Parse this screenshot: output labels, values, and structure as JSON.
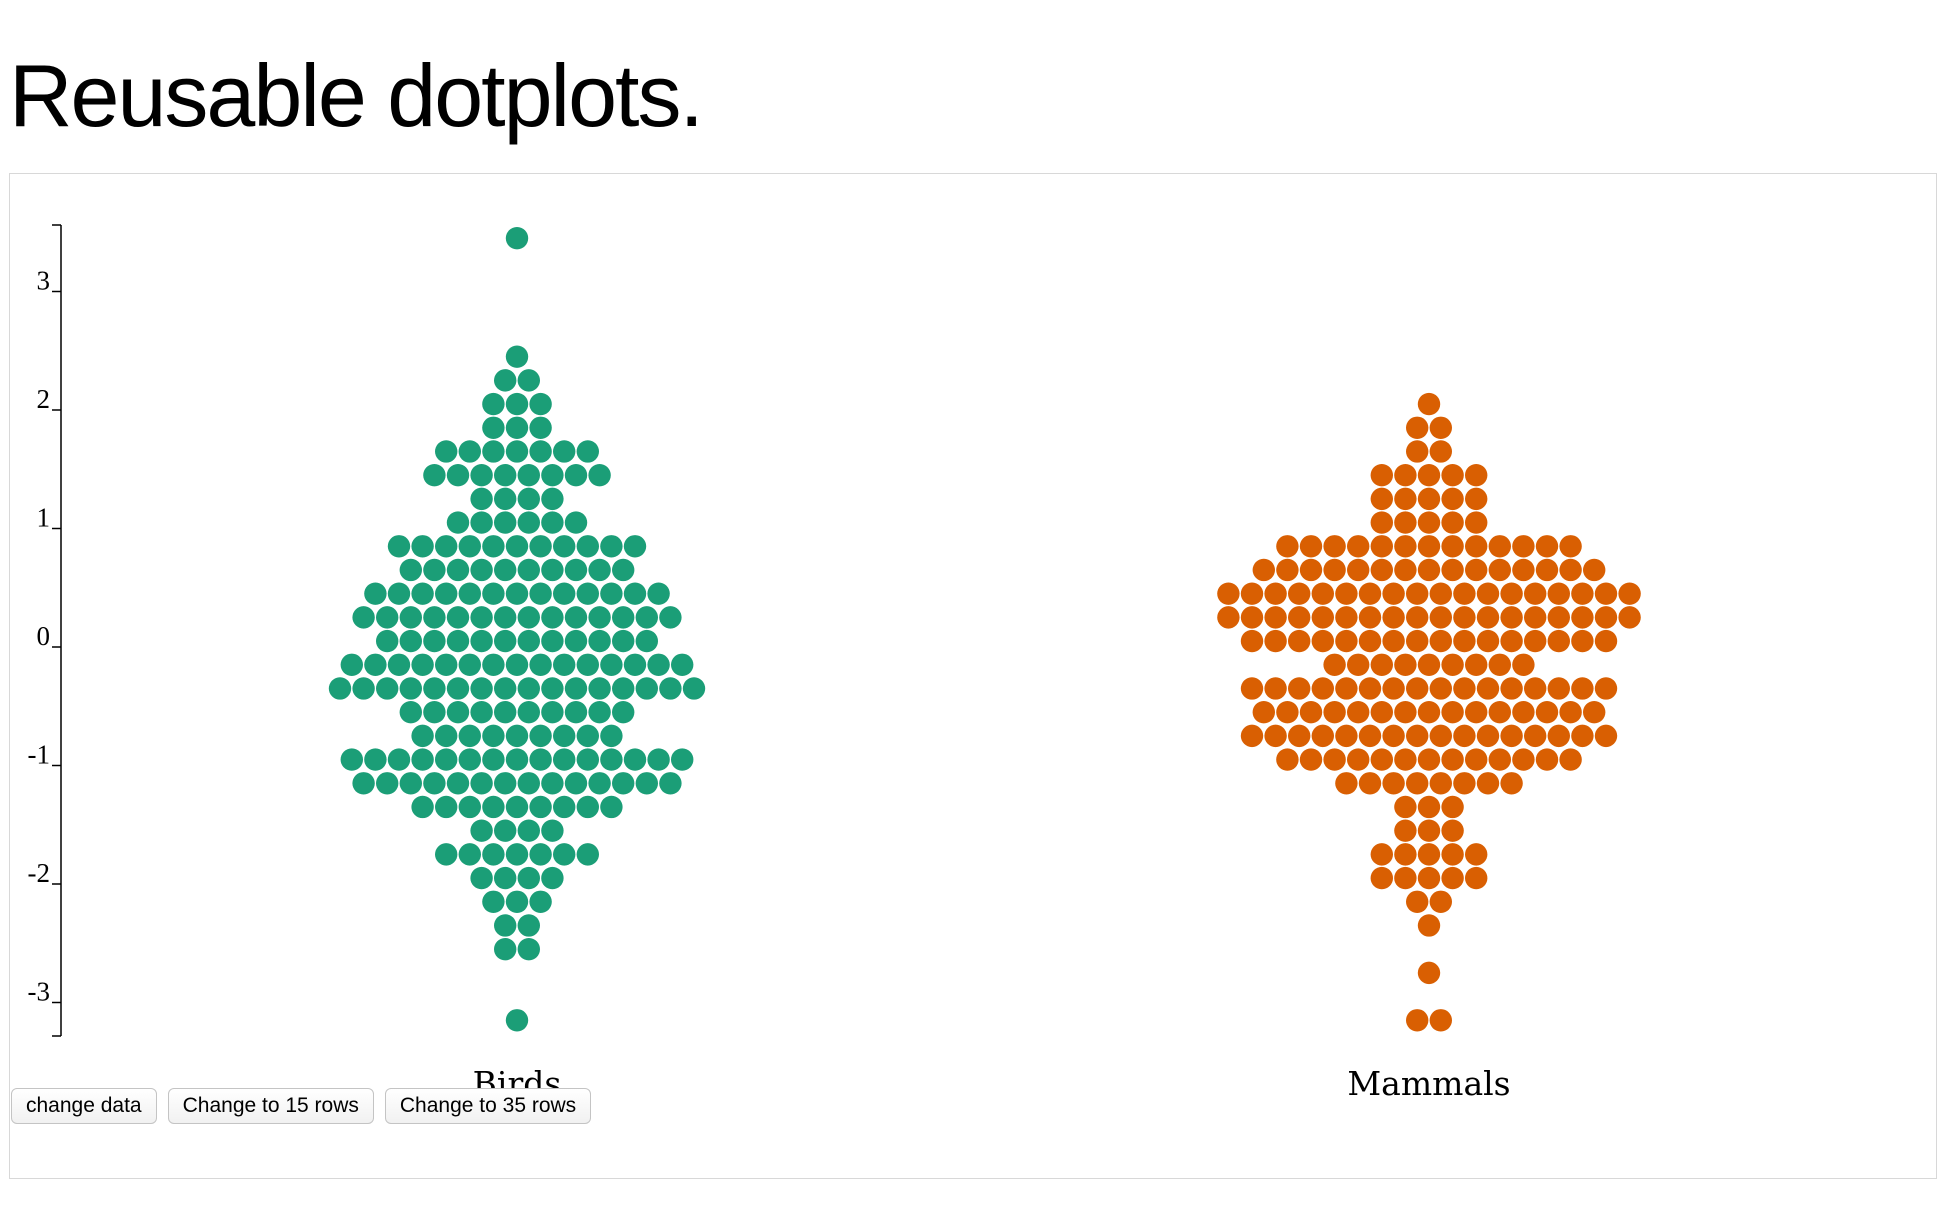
{
  "page": {
    "title": "Reusable dotplots."
  },
  "controls": {
    "change_data": "change data",
    "rows_15": "Change to 15 rows",
    "rows_35": "Change to 35 rows"
  },
  "chart_data": {
    "type": "scatter",
    "subtype": "dotplot",
    "y_ticks": [
      "-3",
      "-2",
      "-1",
      "0",
      "1",
      "2",
      "3"
    ],
    "ylim": [
      -3.4,
      3.6
    ],
    "bin_width": 0.2,
    "grid": false,
    "series": [
      {
        "name": "Birds",
        "color": "#1b9e77",
        "bins": [
          {
            "y": 3.45,
            "count": 1
          },
          {
            "y": 2.45,
            "count": 1
          },
          {
            "y": 2.25,
            "count": 2
          },
          {
            "y": 2.05,
            "count": 3
          },
          {
            "y": 1.85,
            "count": 3
          },
          {
            "y": 1.65,
            "count": 7
          },
          {
            "y": 1.45,
            "count": 8
          },
          {
            "y": 1.25,
            "count": 4
          },
          {
            "y": 1.05,
            "count": 6
          },
          {
            "y": 0.85,
            "count": 11
          },
          {
            "y": 0.65,
            "count": 10
          },
          {
            "y": 0.45,
            "count": 13
          },
          {
            "y": 0.25,
            "count": 14
          },
          {
            "y": 0.05,
            "count": 12
          },
          {
            "y": -0.15,
            "count": 15
          },
          {
            "y": -0.35,
            "count": 16
          },
          {
            "y": -0.55,
            "count": 10
          },
          {
            "y": -0.75,
            "count": 9
          },
          {
            "y": -0.95,
            "count": 15
          },
          {
            "y": -1.15,
            "count": 14
          },
          {
            "y": -1.35,
            "count": 9
          },
          {
            "y": -1.55,
            "count": 4
          },
          {
            "y": -1.75,
            "count": 7
          },
          {
            "y": -1.95,
            "count": 4
          },
          {
            "y": -2.15,
            "count": 3
          },
          {
            "y": -2.35,
            "count": 2
          },
          {
            "y": -2.55,
            "count": 2
          },
          {
            "y": -3.15,
            "count": 1
          }
        ]
      },
      {
        "name": "Mammals",
        "color": "#d95f02",
        "bins": [
          {
            "y": 2.05,
            "count": 1
          },
          {
            "y": 1.85,
            "count": 2
          },
          {
            "y": 1.65,
            "count": 2
          },
          {
            "y": 1.45,
            "count": 5
          },
          {
            "y": 1.25,
            "count": 5
          },
          {
            "y": 1.05,
            "count": 5
          },
          {
            "y": 0.85,
            "count": 13
          },
          {
            "y": 0.65,
            "count": 15
          },
          {
            "y": 0.45,
            "count": 18
          },
          {
            "y": 0.25,
            "count": 18
          },
          {
            "y": 0.05,
            "count": 16
          },
          {
            "y": -0.15,
            "count": 9
          },
          {
            "y": -0.35,
            "count": 16
          },
          {
            "y": -0.55,
            "count": 15
          },
          {
            "y": -0.75,
            "count": 16
          },
          {
            "y": -0.95,
            "count": 13
          },
          {
            "y": -1.15,
            "count": 8
          },
          {
            "y": -1.35,
            "count": 3
          },
          {
            "y": -1.55,
            "count": 3
          },
          {
            "y": -1.75,
            "count": 5
          },
          {
            "y": -1.95,
            "count": 5
          },
          {
            "y": -2.15,
            "count": 2
          },
          {
            "y": -2.35,
            "count": 1
          },
          {
            "y": -2.75,
            "count": 1
          },
          {
            "y": -3.15,
            "count": 2
          }
        ]
      }
    ]
  }
}
